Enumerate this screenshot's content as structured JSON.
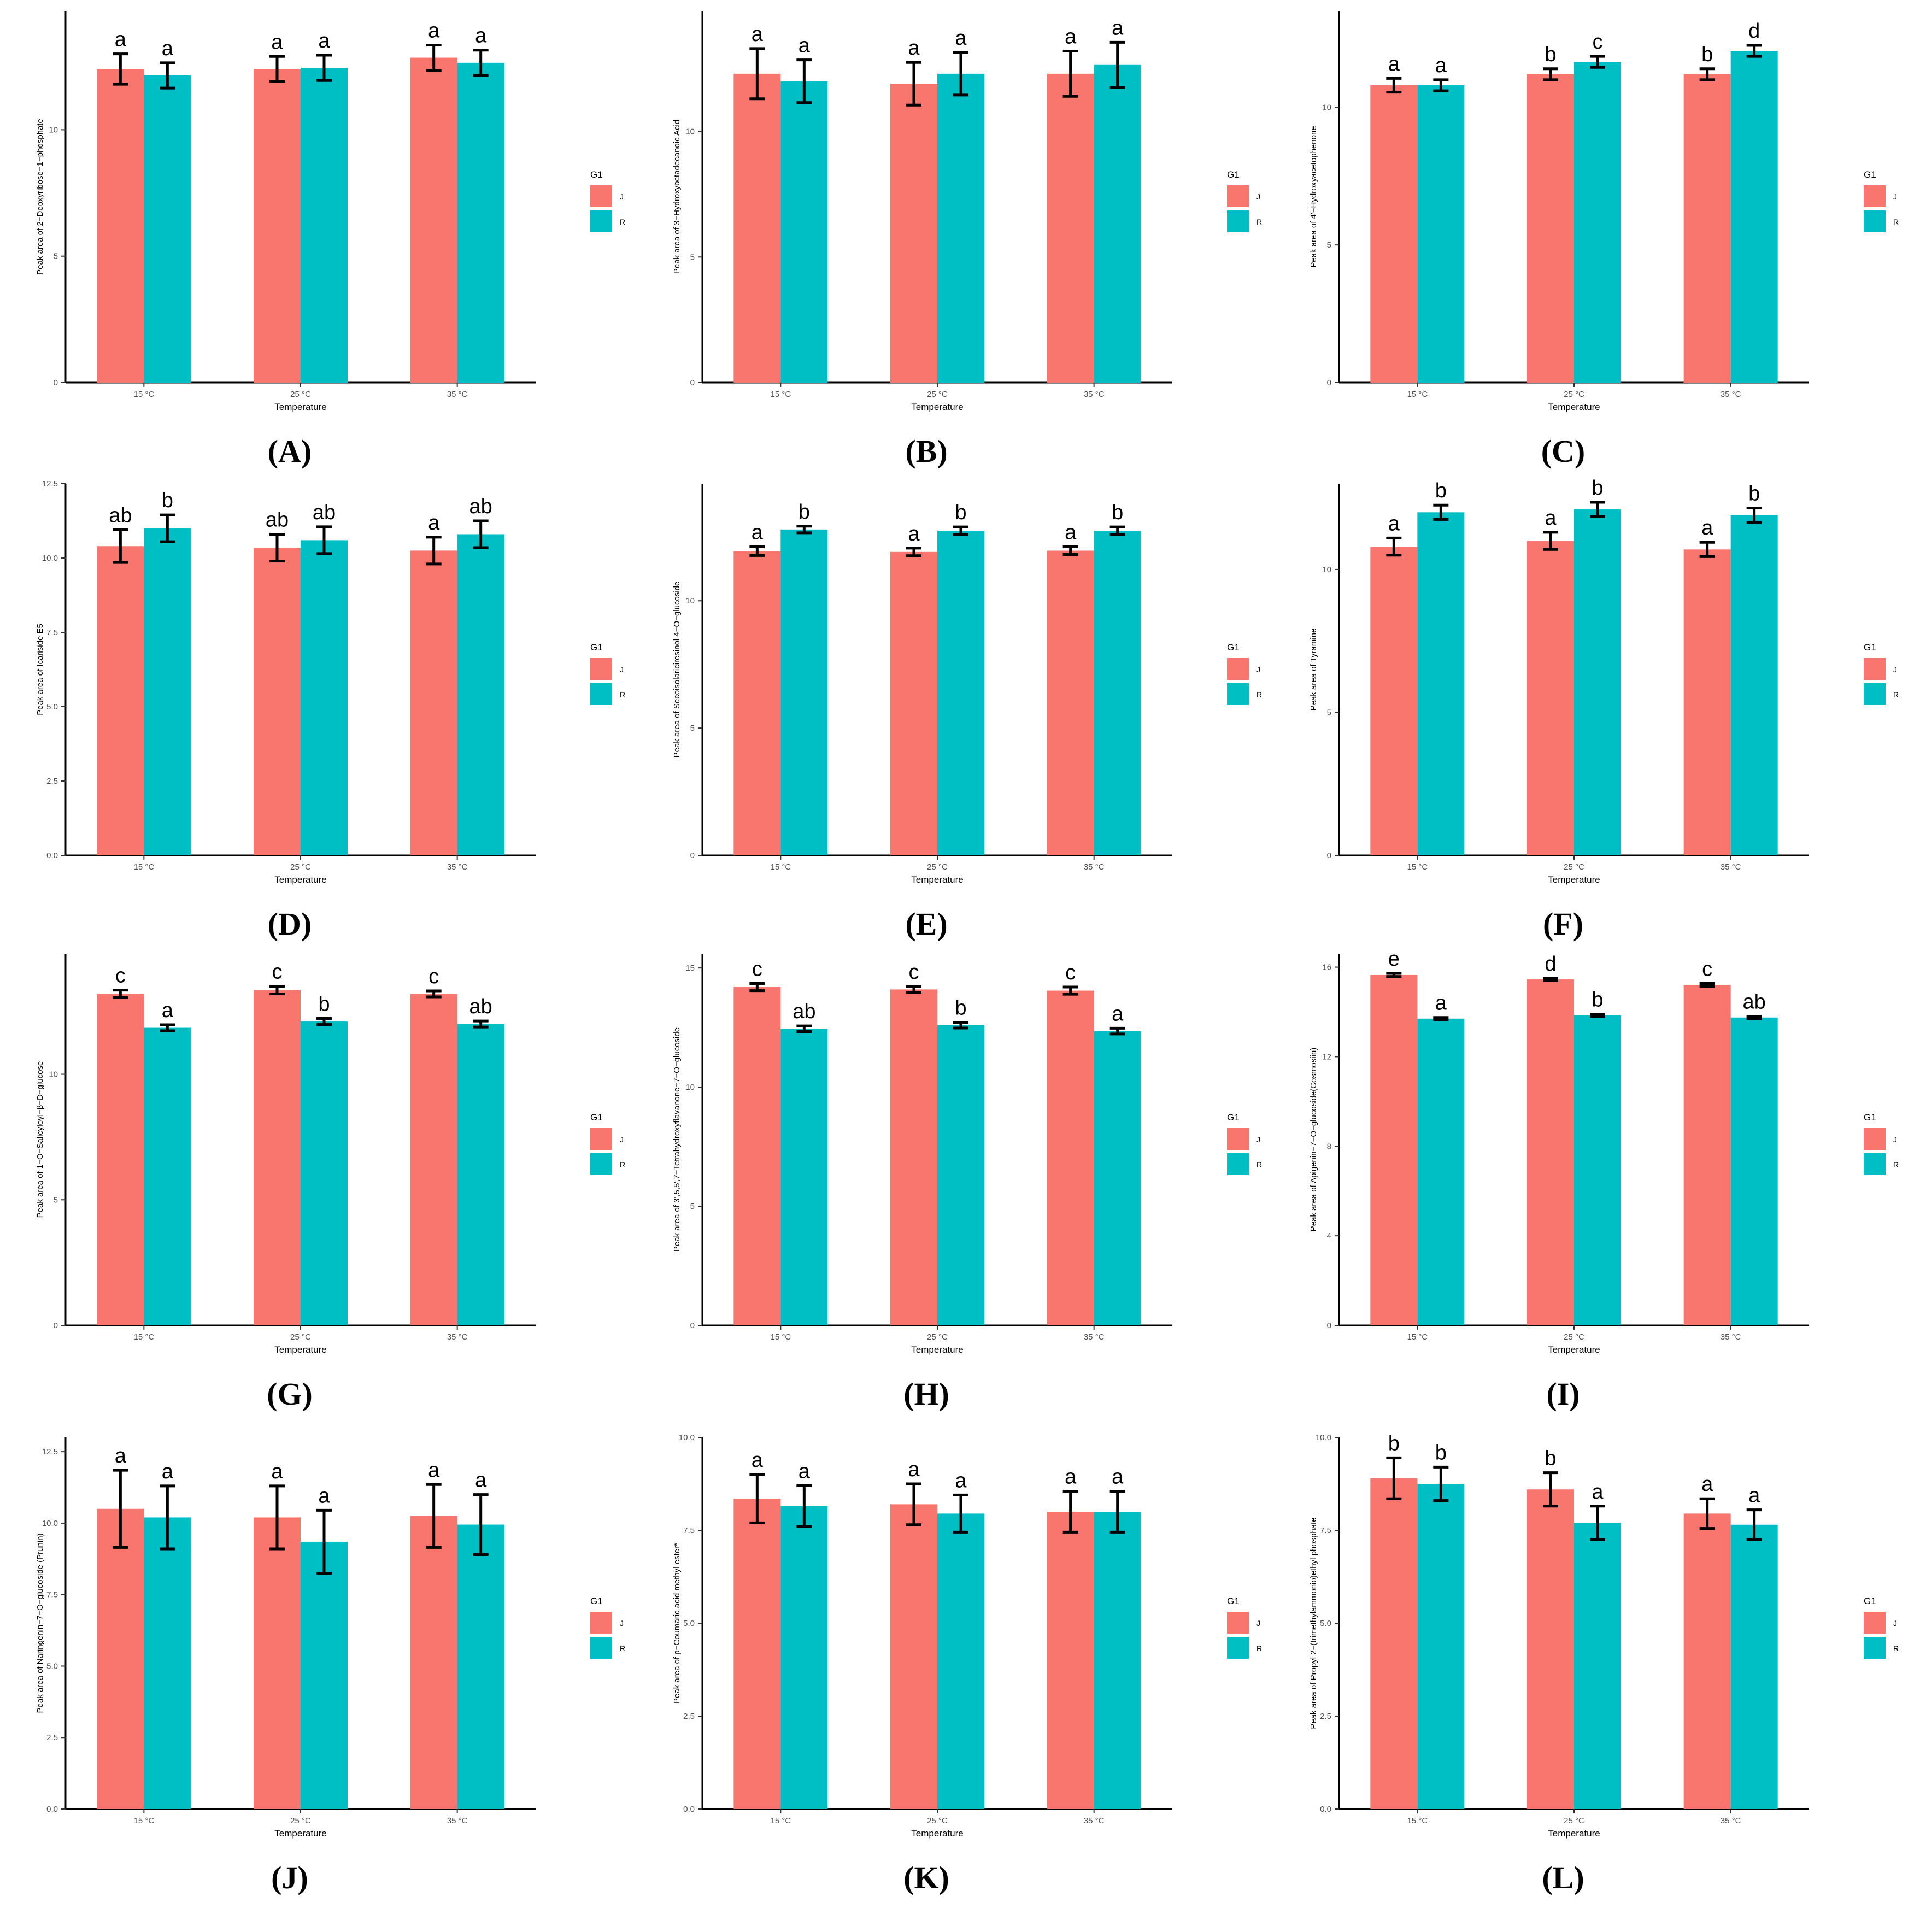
{
  "figure": {
    "x_axis_label": "Temperature",
    "legend_title": "G1",
    "groups": [
      "J",
      "R"
    ],
    "colors": {
      "J": "#F8766D",
      "R": "#00BFC4"
    }
  },
  "chart_data": [
    {
      "panel": "(A)",
      "type": "bar",
      "categories": [
        "15 °C",
        "25 °C",
        "35 °C"
      ],
      "xlabel": "Temperature",
      "ylabel": "Peak area of 2−Deoxyribose−1−phosphate",
      "ylim": [
        0,
        14.7
      ],
      "yticks": [
        0,
        5,
        10
      ],
      "series": [
        {
          "name": "J",
          "values": [
            12.4,
            12.4,
            12.85
          ],
          "errors": [
            0.6,
            0.5,
            0.5
          ],
          "letters": [
            "a",
            "a",
            "a"
          ]
        },
        {
          "name": "R",
          "values": [
            12.15,
            12.45,
            12.65
          ],
          "errors": [
            0.5,
            0.5,
            0.5
          ],
          "letters": [
            "a",
            "a",
            "a"
          ]
        }
      ],
      "legend_labels": [
        "J",
        "R"
      ],
      "legend_position": "right"
    },
    {
      "panel": "(B)",
      "type": "bar",
      "categories": [
        "15 °C",
        "25 °C",
        "35 °C"
      ],
      "xlabel": "Temperature",
      "ylabel": "Peak area of 3−Hydroxyoctadecanoic Acid",
      "ylim": [
        0,
        14.8
      ],
      "yticks": [
        0,
        5,
        10
      ],
      "series": [
        {
          "name": "J",
          "values": [
            12.3,
            11.9,
            12.3
          ],
          "errors": [
            1.0,
            0.85,
            0.9
          ],
          "letters": [
            "a",
            "a",
            "a"
          ]
        },
        {
          "name": "R",
          "values": [
            12.0,
            12.3,
            12.65
          ],
          "errors": [
            0.85,
            0.85,
            0.9
          ],
          "letters": [
            "a",
            "a",
            "a"
          ]
        }
      ],
      "legend_labels": [
        "J",
        "R"
      ],
      "legend_position": "right"
    },
    {
      "panel": "(C)",
      "type": "bar",
      "categories": [
        "15 °C",
        "25 °C",
        "35 °C"
      ],
      "xlabel": "Temperature",
      "ylabel": "Peak area of 4'−Hydroxyacetophenone",
      "ylim": [
        0,
        13.5
      ],
      "yticks": [
        0,
        5,
        10
      ],
      "series": [
        {
          "name": "J",
          "values": [
            10.8,
            11.2,
            11.2
          ],
          "errors": [
            0.25,
            0.2,
            0.2
          ],
          "letters": [
            "a",
            "b",
            "b"
          ]
        },
        {
          "name": "R",
          "values": [
            10.8,
            11.65,
            12.05
          ],
          "errors": [
            0.2,
            0.2,
            0.2
          ],
          "letters": [
            "a",
            "c",
            "d"
          ]
        }
      ],
      "legend_labels": [
        "J",
        "R"
      ],
      "legend_position": "right"
    },
    {
      "panel": "(D)",
      "type": "bar",
      "categories": [
        "15 °C",
        "25 °C",
        "35 °C"
      ],
      "xlabel": "Temperature",
      "ylabel": "Peak area of Icariside E5",
      "ylim": [
        0,
        12.5
      ],
      "yticks": [
        0.0,
        2.5,
        5.0,
        7.5,
        10.0,
        12.5
      ],
      "series": [
        {
          "name": "J",
          "values": [
            10.4,
            10.35,
            10.25
          ],
          "errors": [
            0.55,
            0.45,
            0.45
          ],
          "letters": [
            "ab",
            "ab",
            "a"
          ]
        },
        {
          "name": "R",
          "values": [
            11.0,
            10.6,
            10.8
          ],
          "errors": [
            0.45,
            0.45,
            0.45
          ],
          "letters": [
            "b",
            "ab",
            "ab"
          ]
        }
      ],
      "legend_labels": [
        "J",
        "R"
      ],
      "legend_position": "right"
    },
    {
      "panel": "(E)",
      "type": "bar",
      "categories": [
        "15 °C",
        "25 °C",
        "35 °C"
      ],
      "xlabel": "Temperature",
      "ylabel": "Peak area of Secoisolariciresinol 4−O−glucoside",
      "ylim": [
        0,
        14.6
      ],
      "yticks": [
        0,
        5,
        10
      ],
      "series": [
        {
          "name": "J",
          "values": [
            11.95,
            11.92,
            11.97
          ],
          "errors": [
            0.17,
            0.15,
            0.15
          ],
          "letters": [
            "a",
            "a",
            "a"
          ]
        },
        {
          "name": "R",
          "values": [
            12.8,
            12.75,
            12.75
          ],
          "errors": [
            0.13,
            0.15,
            0.15
          ],
          "letters": [
            "b",
            "b",
            "b"
          ]
        }
      ],
      "legend_labels": [
        "J",
        "R"
      ],
      "legend_position": "right"
    },
    {
      "panel": "(F)",
      "type": "bar",
      "categories": [
        "15 °C",
        "25 °C",
        "35 °C"
      ],
      "xlabel": "Temperature",
      "ylabel": "Peak area of Tyramine",
      "ylim": [
        0,
        13.0
      ],
      "yticks": [
        0,
        5,
        10
      ],
      "series": [
        {
          "name": "J",
          "values": [
            10.8,
            11.0,
            10.7
          ],
          "errors": [
            0.3,
            0.3,
            0.25
          ],
          "letters": [
            "a",
            "a",
            "a"
          ]
        },
        {
          "name": "R",
          "values": [
            12.0,
            12.1,
            11.9
          ],
          "errors": [
            0.25,
            0.25,
            0.25
          ],
          "letters": [
            "b",
            "b",
            "b"
          ]
        }
      ],
      "legend_labels": [
        "J",
        "R"
      ],
      "legend_position": "right"
    },
    {
      "panel": "(G)",
      "type": "bar",
      "categories": [
        "15 °C",
        "25 °C",
        "35 °C"
      ],
      "xlabel": "Temperature",
      "ylabel": "Peak area of 1−O−Salicyloyl−β−D−glucose",
      "ylim": [
        0,
        14.8
      ],
      "yticks": [
        0,
        5,
        10
      ],
      "series": [
        {
          "name": "J",
          "values": [
            13.2,
            13.35,
            13.2
          ],
          "errors": [
            0.15,
            0.15,
            0.12
          ],
          "letters": [
            "c",
            "c",
            "c"
          ]
        },
        {
          "name": "R",
          "values": [
            11.85,
            12.1,
            12.0
          ],
          "errors": [
            0.12,
            0.12,
            0.12
          ],
          "letters": [
            "a",
            "b",
            "ab"
          ]
        }
      ],
      "legend_labels": [
        "J",
        "R"
      ],
      "legend_position": "right"
    },
    {
      "panel": "(H)",
      "type": "bar",
      "categories": [
        "15 °C",
        "25 °C",
        "35 °C"
      ],
      "xlabel": "Temperature",
      "ylabel": "Peak area of 3',5,5',7−Tetrahydroxyflavanone−7−O−glucoside",
      "ylim": [
        0,
        15.6
      ],
      "yticks": [
        0,
        5,
        10,
        15
      ],
      "series": [
        {
          "name": "J",
          "values": [
            14.2,
            14.1,
            14.05
          ],
          "errors": [
            0.15,
            0.12,
            0.15
          ],
          "letters": [
            "c",
            "c",
            "c"
          ]
        },
        {
          "name": "R",
          "values": [
            12.45,
            12.6,
            12.35
          ],
          "errors": [
            0.12,
            0.12,
            0.12
          ],
          "letters": [
            "ab",
            "b",
            "a"
          ]
        }
      ],
      "legend_labels": [
        "J",
        "R"
      ],
      "legend_position": "right"
    },
    {
      "panel": "(I)",
      "type": "bar",
      "categories": [
        "15 °C",
        "25 °C",
        "35 °C"
      ],
      "xlabel": "Temperature",
      "ylabel": "Peak area of Apigenin−7−O−glucoside(Cosmosiin)",
      "ylim": [
        0,
        16.6
      ],
      "yticks": [
        0,
        4,
        8,
        12,
        16
      ],
      "series": [
        {
          "name": "J",
          "values": [
            15.65,
            15.45,
            15.2
          ],
          "errors": [
            0.07,
            0.05,
            0.07
          ],
          "letters": [
            "e",
            "d",
            "c"
          ]
        },
        {
          "name": "R",
          "values": [
            13.7,
            13.85,
            13.75
          ],
          "errors": [
            0.05,
            0.05,
            0.05
          ],
          "letters": [
            "a",
            "b",
            "ab"
          ]
        }
      ],
      "legend_labels": [
        "J",
        "R"
      ],
      "legend_position": "right"
    },
    {
      "panel": "(J)",
      "type": "bar",
      "categories": [
        "15 °C",
        "25 °C",
        "35 °C"
      ],
      "xlabel": "Temperature",
      "ylabel": "Peak area of Naringenin−7−O−glucoside (Prunin)",
      "ylim": [
        0,
        13.0
      ],
      "yticks": [
        0.0,
        2.5,
        5.0,
        7.5,
        10.0,
        12.5
      ],
      "series": [
        {
          "name": "J",
          "values": [
            10.5,
            10.2,
            10.25
          ],
          "errors": [
            1.35,
            1.1,
            1.1
          ],
          "letters": [
            "a",
            "a",
            "a"
          ]
        },
        {
          "name": "R",
          "values": [
            10.2,
            9.35,
            9.95
          ],
          "errors": [
            1.1,
            1.1,
            1.05
          ],
          "letters": [
            "a",
            "a",
            "a"
          ]
        }
      ],
      "legend_labels": [
        "J",
        "R"
      ],
      "legend_position": "right"
    },
    {
      "panel": "(K)",
      "type": "bar",
      "categories": [
        "15 °C",
        "25 °C",
        "35 °C"
      ],
      "xlabel": "Temperature",
      "ylabel": "Peak area of p−Coumaric acid methyl ester*",
      "ylim": [
        0,
        10.0
      ],
      "yticks": [
        0.0,
        2.5,
        5.0,
        7.5,
        10.0
      ],
      "series": [
        {
          "name": "J",
          "values": [
            8.35,
            8.2,
            8.0
          ],
          "errors": [
            0.65,
            0.55,
            0.55
          ],
          "letters": [
            "a",
            "a",
            "a"
          ]
        },
        {
          "name": "R",
          "values": [
            8.15,
            7.95,
            8.0
          ],
          "errors": [
            0.55,
            0.5,
            0.55
          ],
          "letters": [
            "a",
            "a",
            "a"
          ]
        }
      ],
      "legend_labels": [
        "J",
        "R"
      ],
      "legend_position": "right"
    },
    {
      "panel": "(L)",
      "type": "bar",
      "categories": [
        "15 °C",
        "25 °C",
        "35 °C"
      ],
      "xlabel": "Temperature",
      "ylabel": "Peak area of Propyl 2−(trimethylammonio)ethyl phosphate",
      "ylim": [
        0,
        10.0
      ],
      "yticks": [
        0.0,
        2.5,
        5.0,
        7.5,
        10.0
      ],
      "series": [
        {
          "name": "J",
          "values": [
            8.9,
            8.6,
            7.95
          ],
          "errors": [
            0.55,
            0.45,
            0.4
          ],
          "letters": [
            "b",
            "b",
            "a"
          ]
        },
        {
          "name": "R",
          "values": [
            8.75,
            7.7,
            7.65
          ],
          "errors": [
            0.45,
            0.45,
            0.4
          ],
          "letters": [
            "b",
            "a",
            "a"
          ]
        }
      ],
      "legend_labels": [
        "J",
        "R"
      ],
      "legend_position": "right"
    }
  ]
}
